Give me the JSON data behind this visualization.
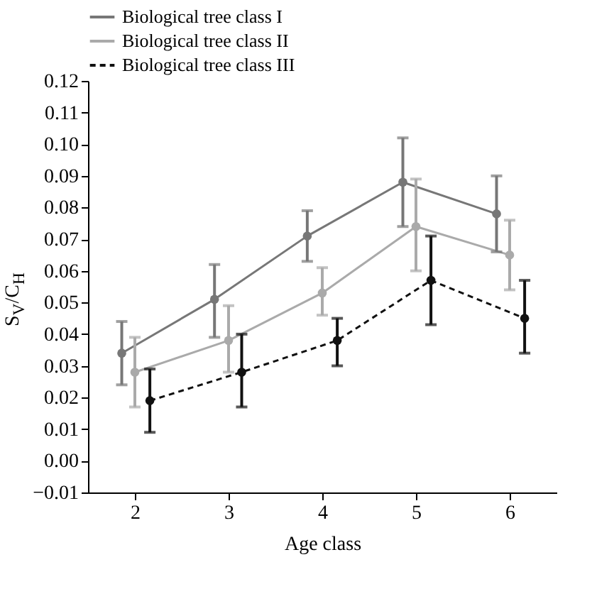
{
  "chart_data": {
    "type": "line",
    "xlabel": "Age class",
    "ylabel": "S$_{V}$/C$_{H}$",
    "xlim": [
      1.5,
      6.5
    ],
    "xticks": [
      2,
      3,
      4,
      5,
      6
    ],
    "ylim": [
      -0.01,
      0.12
    ],
    "yticks": [
      {
        "value": -0.01,
        "label": "−0.01"
      },
      {
        "value": 0,
        "label": "0.00"
      },
      0.01,
      0.02,
      0.03,
      0.04,
      0.05,
      0.06,
      0.07,
      0.08,
      0.09,
      {
        "value": 0.1,
        "label": "0.10"
      },
      0.11,
      0.12
    ],
    "legend": "top",
    "grid": false,
    "marker": "circle",
    "series": [
      {
        "name": "Biological tree class I",
        "color": "#777777",
        "line_style": "solid",
        "x": [
          1.86,
          2.85,
          3.84,
          4.86,
          5.86
        ],
        "values": [
          0.034,
          0.051,
          0.071,
          0.088,
          0.078
        ],
        "errors": [
          [
            0.024,
            0.044
          ],
          [
            0.039,
            0.062
          ],
          [
            0.063,
            0.079
          ],
          [
            0.074,
            0.102
          ],
          [
            0.066,
            0.09
          ]
        ]
      },
      {
        "name": "Biological tree class II",
        "color": "#aaaaaa",
        "line_style": "solid",
        "x": [
          2,
          3,
          4,
          5,
          6
        ],
        "values": [
          0.028,
          0.038,
          0.053,
          0.074,
          0.065
        ],
        "errors": [
          [
            0.017,
            0.039
          ],
          [
            0.028,
            0.049
          ],
          [
            0.046,
            0.061
          ],
          [
            0.06,
            0.089
          ],
          [
            0.054,
            0.076
          ]
        ]
      },
      {
        "name": "Biological tree class III",
        "color": "#111111",
        "line_style": "dashed",
        "x": [
          2.16,
          3.14,
          4.16,
          5.16,
          6.16
        ],
        "values": [
          0.019,
          0.028,
          0.038,
          0.057,
          0.045
        ],
        "errors": [
          [
            0.009,
            0.029
          ],
          [
            0.017,
            0.04
          ],
          [
            0.03,
            0.045
          ],
          [
            0.043,
            0.071
          ],
          [
            0.034,
            0.057
          ]
        ]
      }
    ]
  }
}
